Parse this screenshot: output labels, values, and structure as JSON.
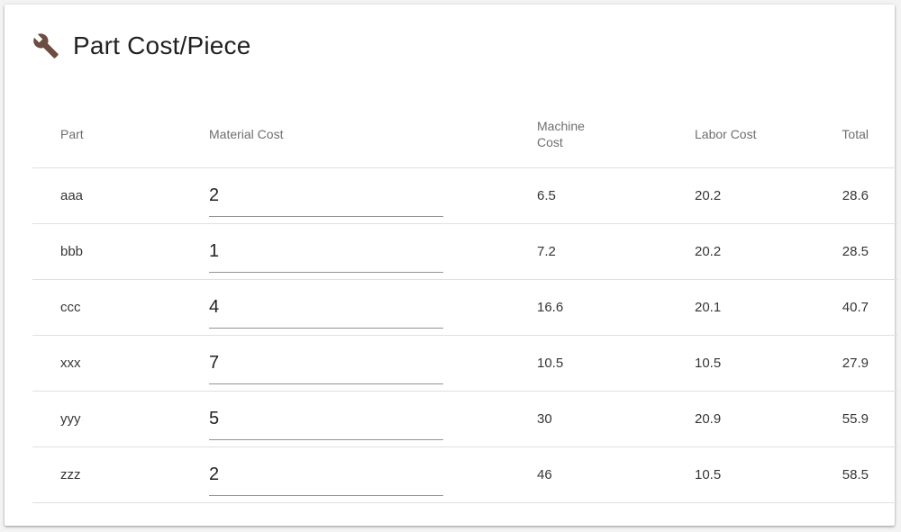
{
  "card": {
    "title": "Part Cost/Piece",
    "icon": "wrench-icon",
    "icon_color": "#6d4c41"
  },
  "table": {
    "headers": {
      "part": "Part",
      "material": "Material Cost",
      "machine": "Machine Cost",
      "labor": "Labor Cost",
      "total": "Total"
    },
    "rows": [
      {
        "part": "aaa",
        "material": "2",
        "machine": "6.5",
        "labor": "20.2",
        "total": "28.6"
      },
      {
        "part": "bbb",
        "material": "1",
        "machine": "7.2",
        "labor": "20.2",
        "total": "28.5"
      },
      {
        "part": "ccc",
        "material": "4",
        "machine": "16.6",
        "labor": "20.1",
        "total": "40.7"
      },
      {
        "part": "xxx",
        "material": "7",
        "machine": "10.5",
        "labor": "10.5",
        "total": "27.9"
      },
      {
        "part": "yyy",
        "material": "5",
        "machine": "30",
        "labor": "20.9",
        "total": "55.9"
      },
      {
        "part": "zzz",
        "material": "2",
        "machine": "46",
        "labor": "10.5",
        "total": "58.5"
      }
    ]
  }
}
